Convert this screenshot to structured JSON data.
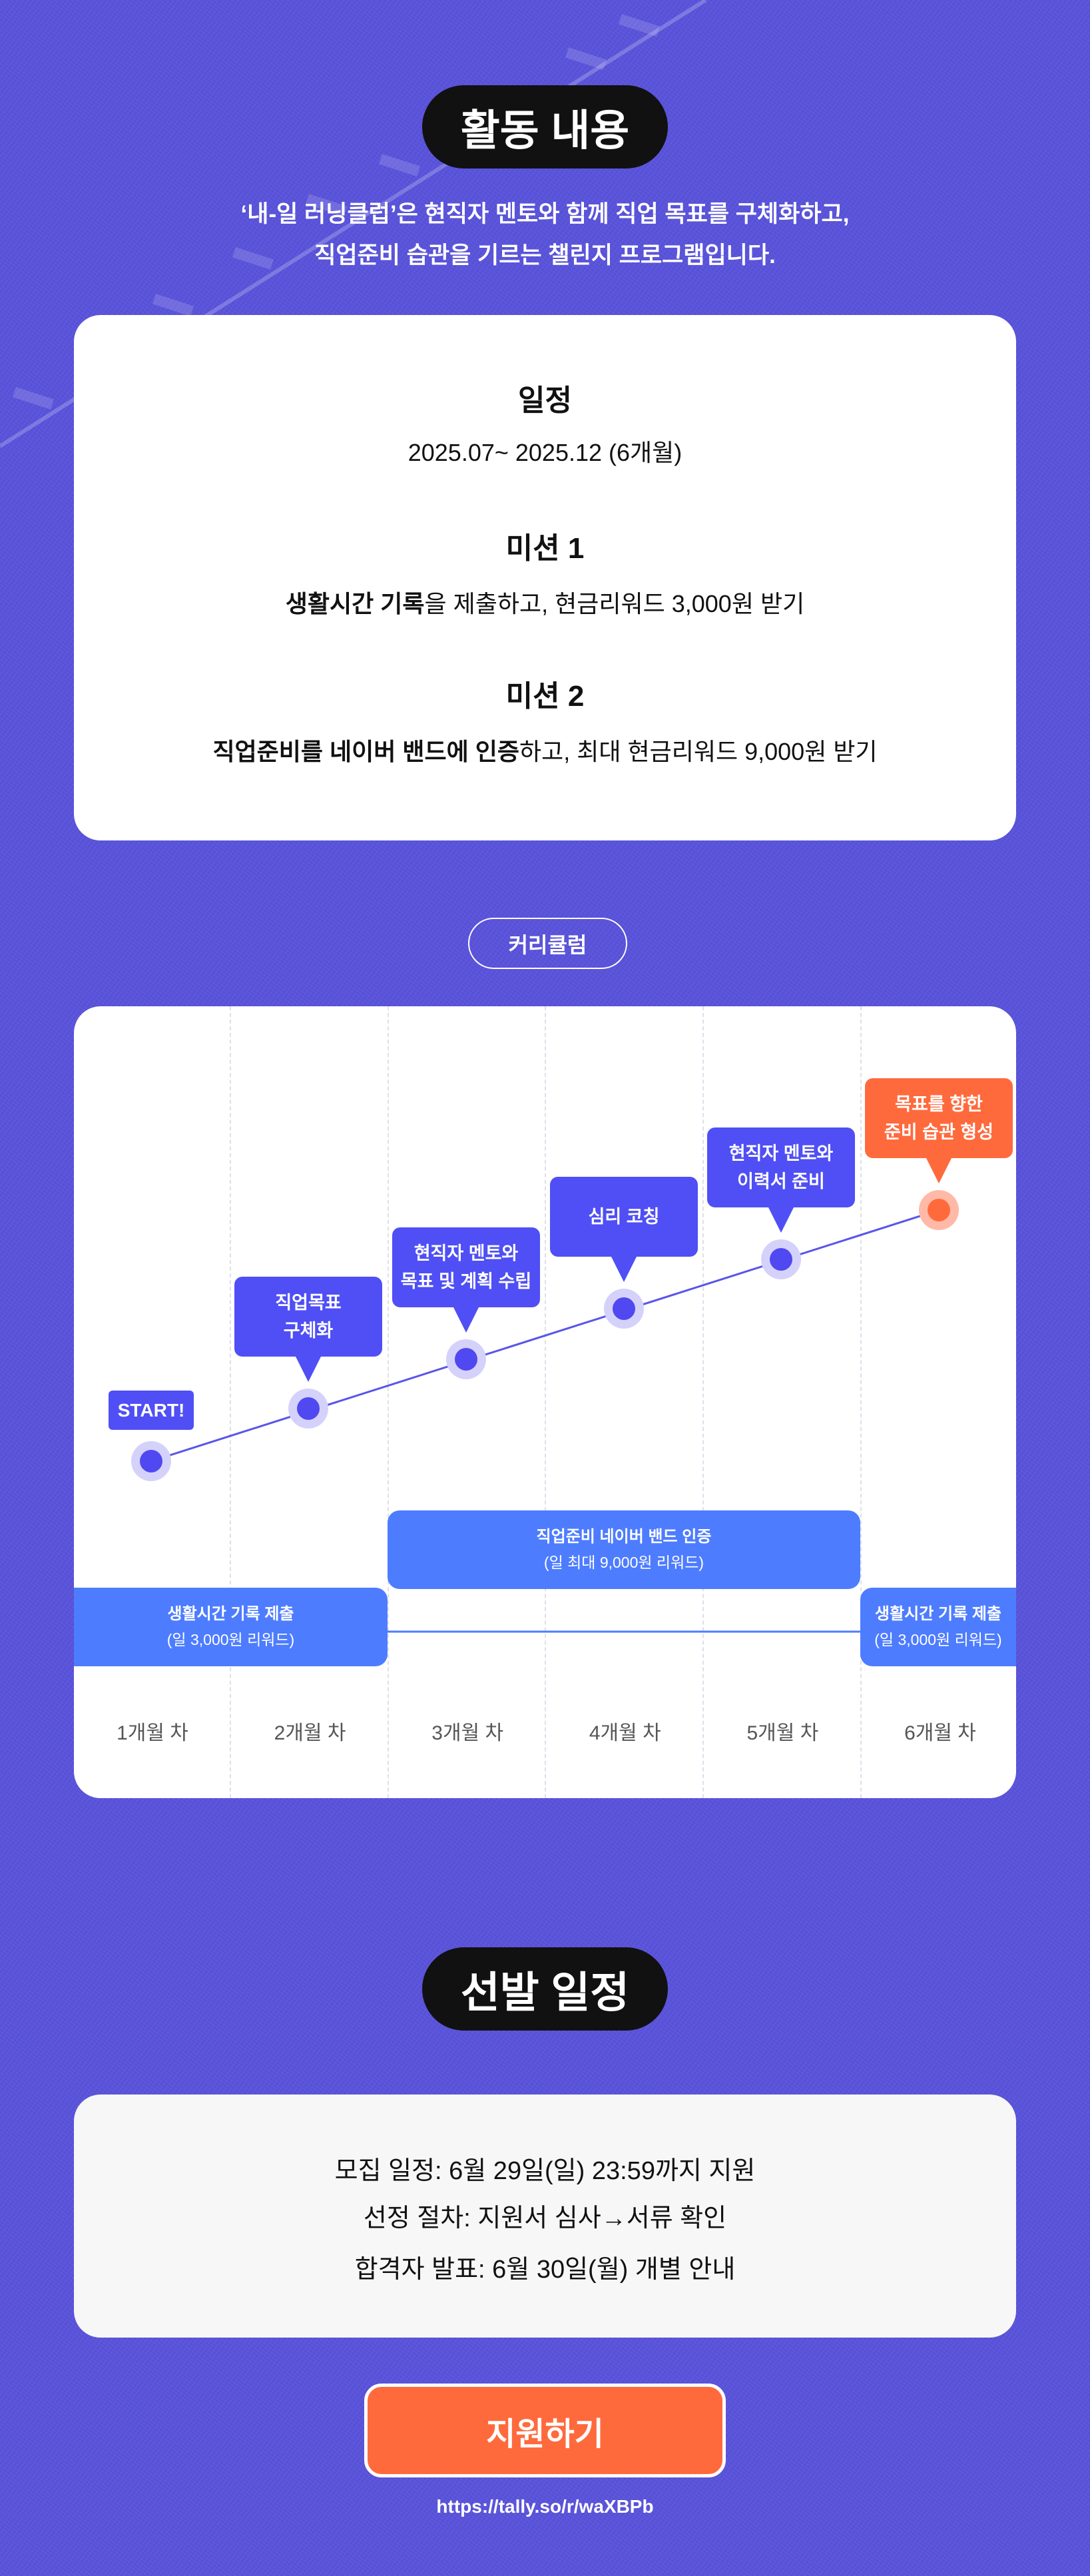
{
  "activity": {
    "title": "활동 내용",
    "intro_line1": "‘내-일 러닝클럽’은 현직자 멘토와 함께 직업 목표를 구체화하고,",
    "intro_line2": "직업준비 습관을 기르는 챌린지 프로그램입니다.",
    "schedule_heading": "일정",
    "schedule_value": "2025.07~ 2025.12 (6개월)",
    "mission1_heading": "미션 1",
    "mission1_bold": "생활시간 기록",
    "mission1_rest": "을 제출하고, 현금리워드 3,000원 받기",
    "mission2_heading": "미션 2",
    "mission2_bold": "직업준비를 네이버 밴드에 인증",
    "mission2_rest": "하고, 최대 현금리워드 9,000원 받기"
  },
  "curriculum": {
    "label": "커리큘럼",
    "stages": [
      {
        "label": "START!"
      },
      {
        "label": "직업목표\n구체화"
      },
      {
        "label": "현직자 멘토와\n목표 및 계획 수립"
      },
      {
        "label": "심리 코칭"
      },
      {
        "label": "현직자 멘토와\n이력서 준비"
      },
      {
        "label": "목표를 향한\n준비 습관 형성"
      }
    ],
    "band_mid_title": "직업준비 네이버 밴드 인증",
    "band_mid_sub": "(일 최대 9,000원 리워드)",
    "band_left_title": "생활시간 기록 제출",
    "band_left_sub": "(일 3,000원 리워드)",
    "band_right_title": "생활시간 기록 제출",
    "band_right_sub": "(일 3,000원 리워드)",
    "months": [
      "1개월 차",
      "2개월 차",
      "3개월 차",
      "4개월 차",
      "5개월 차",
      "6개월 차"
    ],
    "colors": {
      "bubble": "#4f4ff5",
      "highlight": "#ff6a3d",
      "band": "#4d7cff"
    }
  },
  "selection": {
    "title": "선발 일정",
    "lines": [
      "모집 일정: 6월 29일(일) 23:59까지 지원",
      "선정 절차: 지원서 심사→서류 확인",
      "합격자 발표: 6월 30일(월) 개별 안내"
    ]
  },
  "apply": {
    "button": "지원하기",
    "url": "https://tally.so/r/waXBPb"
  }
}
